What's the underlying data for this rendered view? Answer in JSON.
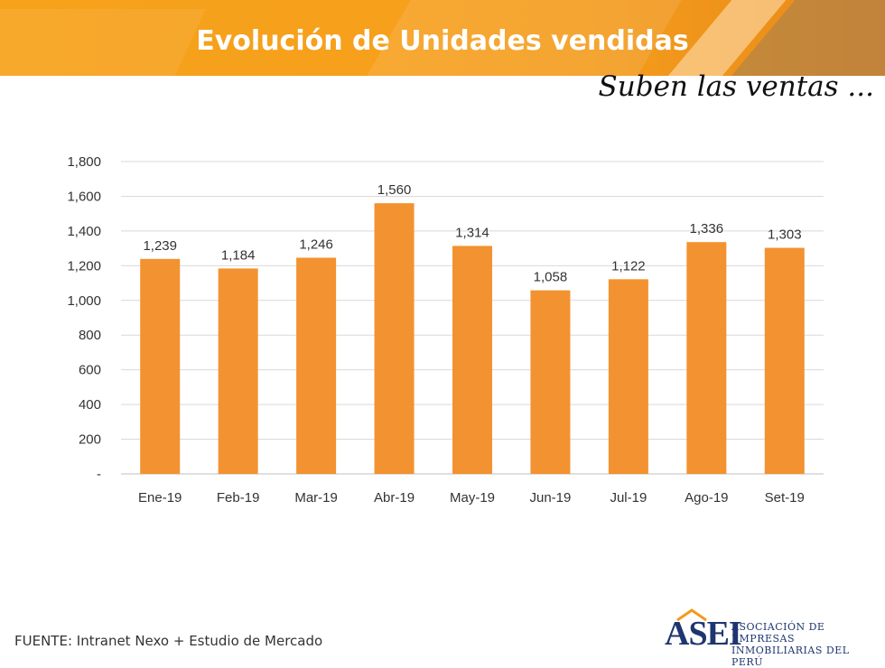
{
  "header": {
    "title": "Evolución de Unidades vendidas",
    "subtitle": "Suben las ventas ..."
  },
  "chart_data": {
    "type": "bar",
    "categories": [
      "Ene-19",
      "Feb-19",
      "Mar-19",
      "Abr-19",
      "May-19",
      "Jun-19",
      "Jul-19",
      "Ago-19",
      "Set-19"
    ],
    "values": [
      1239,
      1184,
      1246,
      1560,
      1314,
      1058,
      1122,
      1336,
      1303
    ],
    "value_labels": [
      "1,239",
      "1,184",
      "1,246",
      "1,560",
      "1,314",
      "1,058",
      "1,122",
      "1,336",
      "1,303"
    ],
    "yticks": [
      "-",
      "200",
      "400",
      "600",
      "800",
      "1,000",
      "1,200",
      "1,400",
      "1,600",
      "1,800"
    ],
    "ylim": [
      0,
      1800
    ],
    "grid": true,
    "bar_color": "#f39230"
  },
  "footer": {
    "source": "FUENTE: Intranet Nexo + Estudio de Mercado",
    "logo_mark": "ASEI",
    "logo_line1": "ASOCIACIÓN DE EMPRESAS",
    "logo_line2": "INMOBILIARIAS DEL PERÚ"
  }
}
